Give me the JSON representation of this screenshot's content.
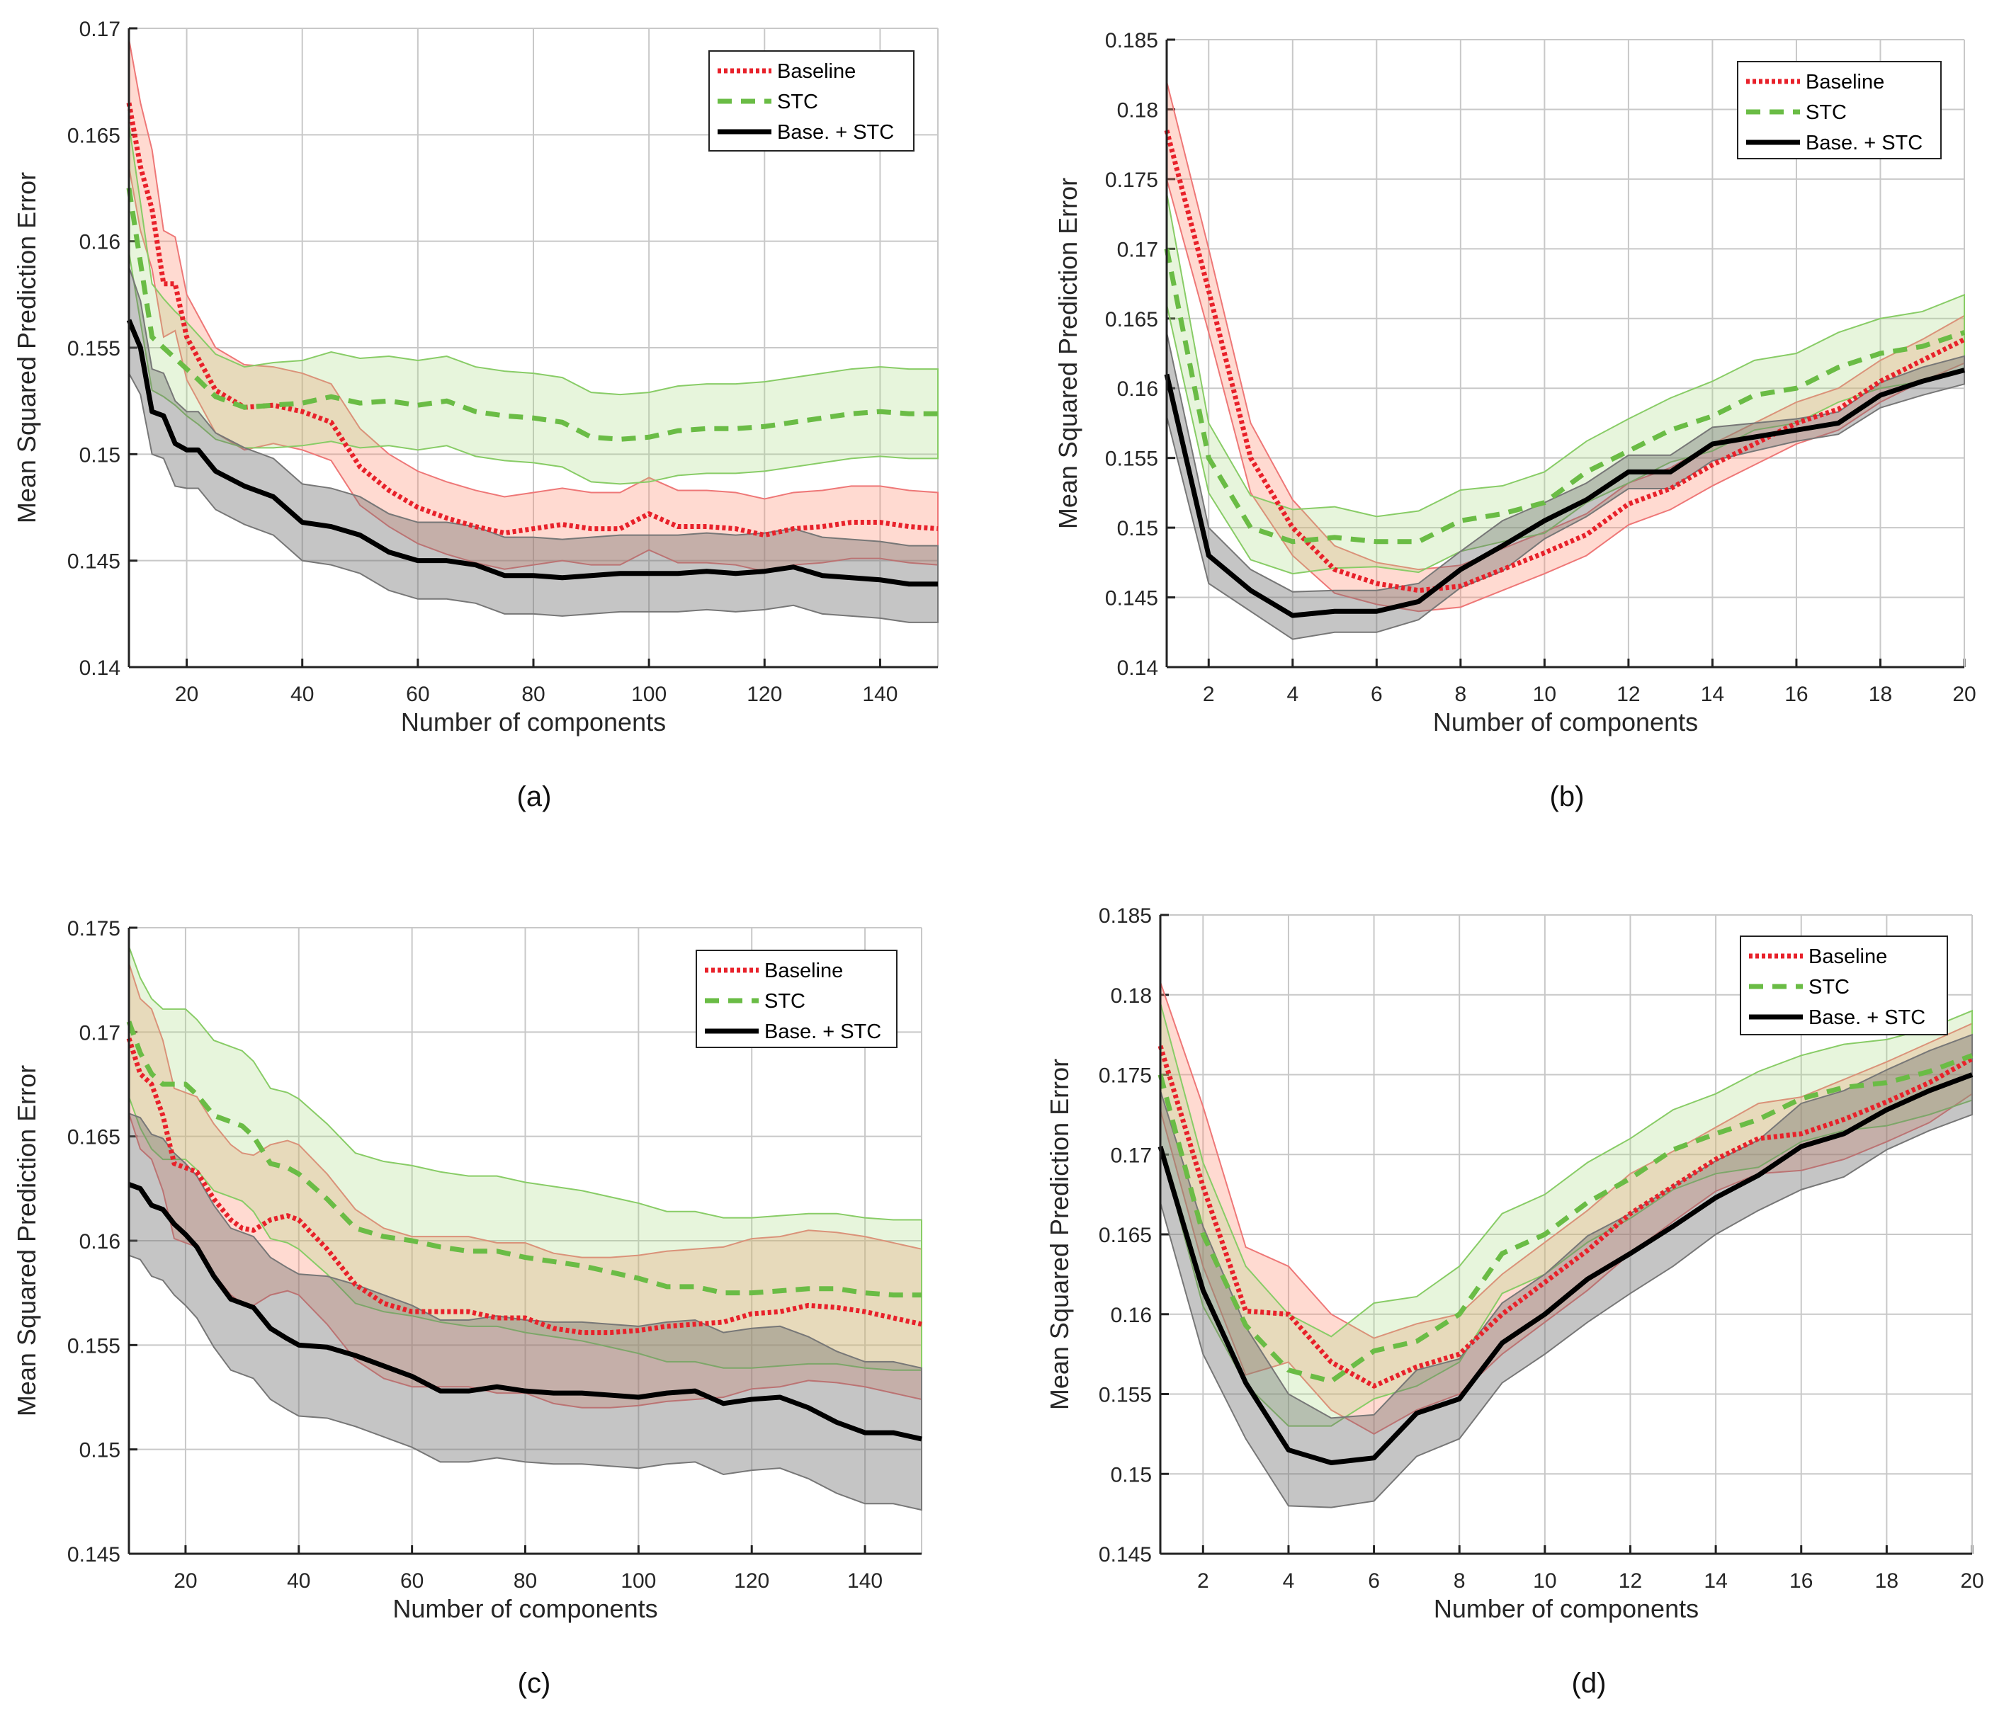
{
  "colors": {
    "baseline": "#e8212a",
    "baseline_band": "#ff8c70",
    "baseline_edge": "#ee7777",
    "stc": "#6abc45",
    "stc_band": "#a8dc80",
    "stc_edge": "#88cc66",
    "combo": "#000000",
    "combo_band": "#6e6e6e",
    "combo_edge": "#777777",
    "grid": "#c8c8c8"
  },
  "chart_data": [
    {
      "type": "line",
      "caption": "(a)",
      "xlabel": "Number of components",
      "ylabel": "Mean Squared Prediction Error",
      "xlim": [
        10,
        150
      ],
      "ylim": [
        0.14,
        0.17
      ],
      "xticks": [
        20,
        40,
        60,
        80,
        100,
        120,
        140
      ],
      "xtick_labels": [
        "20",
        "40",
        "60",
        "80",
        "100",
        "120",
        "140"
      ],
      "yticks": [
        0.14,
        0.145,
        0.15,
        0.155,
        0.16,
        0.165,
        0.17
      ],
      "ytick_labels": [
        "0.14",
        "0.145",
        "0.15",
        "0.155",
        "0.16",
        "0.165",
        "0.17"
      ],
      "grid": true,
      "legend_placement": "top-right",
      "x": [
        10,
        12,
        14,
        16,
        18,
        20,
        22,
        25,
        30,
        35,
        40,
        45,
        50,
        55,
        60,
        65,
        70,
        75,
        80,
        85,
        90,
        95,
        100,
        105,
        110,
        115,
        120,
        125,
        130,
        135,
        140,
        145,
        150
      ],
      "series": [
        {
          "name": "Baseline",
          "style": "dotted",
          "values": [
            0.1665,
            0.1635,
            0.1615,
            0.158,
            0.158,
            0.1555,
            0.1545,
            0.153,
            0.1522,
            0.1523,
            0.152,
            0.1515,
            0.1494,
            0.1483,
            0.1475,
            0.147,
            0.1466,
            0.1463,
            0.1465,
            0.1467,
            0.1465,
            0.1465,
            0.1472,
            0.1466,
            0.1466,
            0.1465,
            0.1462,
            0.1465,
            0.1466,
            0.1468,
            0.1468,
            0.1466,
            0.1465
          ],
          "spread": [
            0.003,
            0.003,
            0.0028,
            0.0025,
            0.0022,
            0.002,
            0.002,
            0.002,
            0.002,
            0.0018,
            0.0018,
            0.0018,
            0.0018,
            0.0017,
            0.0017,
            0.0017,
            0.0017,
            0.0017,
            0.0017,
            0.0017,
            0.0017,
            0.0017,
            0.0017,
            0.0017,
            0.0017,
            0.0017,
            0.0017,
            0.0017,
            0.0017,
            0.0017,
            0.0017,
            0.0017,
            0.0017
          ]
        },
        {
          "name": "STC",
          "style": "dashed",
          "values": [
            0.1625,
            0.159,
            0.1555,
            0.155,
            0.1545,
            0.154,
            0.1535,
            0.1527,
            0.1522,
            0.1523,
            0.1524,
            0.1527,
            0.1524,
            0.1525,
            0.1523,
            0.1525,
            0.152,
            0.1518,
            0.1517,
            0.1515,
            0.1508,
            0.1507,
            0.1508,
            0.1511,
            0.1512,
            0.1512,
            0.1513,
            0.1515,
            0.1517,
            0.1519,
            0.152,
            0.1519,
            0.1519
          ],
          "spread": [
            0.003,
            0.0028,
            0.0025,
            0.0023,
            0.0022,
            0.0022,
            0.0021,
            0.002,
            0.0019,
            0.002,
            0.002,
            0.0021,
            0.0021,
            0.0021,
            0.0021,
            0.0021,
            0.0021,
            0.0021,
            0.0021,
            0.0021,
            0.0021,
            0.0021,
            0.0021,
            0.0021,
            0.0021,
            0.0021,
            0.0021,
            0.0021,
            0.0021,
            0.0021,
            0.0021,
            0.0021,
            0.0021
          ]
        },
        {
          "name": "Base. + STC",
          "style": "solid",
          "values": [
            0.1563,
            0.155,
            0.152,
            0.1518,
            0.1505,
            0.1502,
            0.1502,
            0.1492,
            0.1485,
            0.148,
            0.1468,
            0.1466,
            0.1462,
            0.1454,
            0.145,
            0.145,
            0.1448,
            0.1443,
            0.1443,
            0.1442,
            0.1443,
            0.1444,
            0.1444,
            0.1444,
            0.1445,
            0.1444,
            0.1445,
            0.1447,
            0.1443,
            0.1442,
            0.1441,
            0.1439,
            0.1439
          ],
          "spread": [
            0.0025,
            0.0022,
            0.002,
            0.002,
            0.002,
            0.0018,
            0.0018,
            0.0018,
            0.0018,
            0.0018,
            0.0018,
            0.0018,
            0.0018,
            0.0018,
            0.0018,
            0.0018,
            0.0018,
            0.0018,
            0.0018,
            0.0018,
            0.0018,
            0.0018,
            0.0018,
            0.0018,
            0.0018,
            0.0018,
            0.0018,
            0.0018,
            0.0018,
            0.0018,
            0.0018,
            0.0018,
            0.0018
          ]
        }
      ]
    },
    {
      "type": "line",
      "caption": "(b)",
      "xlabel": "Number of components",
      "ylabel": "Mean Squared Prediction Error",
      "xlim": [
        1,
        20
      ],
      "ylim": [
        0.14,
        0.185
      ],
      "xticks": [
        2,
        4,
        6,
        8,
        10,
        12,
        14,
        16,
        18,
        20
      ],
      "xtick_labels": [
        "2",
        "4",
        "6",
        "8",
        "10",
        "12",
        "14",
        "16",
        "18",
        "20"
      ],
      "yticks": [
        0.14,
        0.145,
        0.15,
        0.155,
        0.16,
        0.165,
        0.17,
        0.175,
        0.18,
        0.185
      ],
      "ytick_labels": [
        "0.14",
        "0.145",
        "0.15",
        "0.155",
        "0.16",
        "0.165",
        "0.17",
        "0.175",
        "0.18",
        "0.185"
      ],
      "grid": true,
      "legend_placement": "top-right",
      "x": [
        1,
        2,
        3,
        4,
        5,
        6,
        7,
        8,
        9,
        10,
        11,
        12,
        13,
        14,
        15,
        16,
        17,
        18,
        19,
        20
      ],
      "series": [
        {
          "name": "Baseline",
          "style": "dotted",
          "values": [
            0.1785,
            0.167,
            0.155,
            0.15,
            0.147,
            0.146,
            0.1455,
            0.1458,
            0.147,
            0.1482,
            0.1495,
            0.1517,
            0.1528,
            0.1545,
            0.156,
            0.1575,
            0.1585,
            0.1605,
            0.162,
            0.1635
          ],
          "spread": [
            0.0035,
            0.003,
            0.0025,
            0.002,
            0.0017,
            0.0015,
            0.0015,
            0.0015,
            0.0015,
            0.0015,
            0.0015,
            0.0015,
            0.0015,
            0.0015,
            0.0015,
            0.0015,
            0.0015,
            0.0015,
            0.0015,
            0.0017
          ]
        },
        {
          "name": "STC",
          "style": "dashed",
          "values": [
            0.17,
            0.155,
            0.15,
            0.149,
            0.1493,
            0.149,
            0.149,
            0.1505,
            0.151,
            0.1518,
            0.154,
            0.1555,
            0.157,
            0.158,
            0.1595,
            0.16,
            0.1615,
            0.1625,
            0.163,
            0.164
          ],
          "spread": [
            0.004,
            0.0025,
            0.0023,
            0.0023,
            0.0022,
            0.0018,
            0.0022,
            0.0022,
            0.002,
            0.0022,
            0.0022,
            0.0023,
            0.0023,
            0.0025,
            0.0025,
            0.0025,
            0.0025,
            0.0025,
            0.0025,
            0.0027
          ]
        },
        {
          "name": "Base. + STC",
          "style": "solid",
          "values": [
            0.161,
            0.148,
            0.1455,
            0.1437,
            0.144,
            0.144,
            0.1447,
            0.147,
            0.1487,
            0.1505,
            0.152,
            0.154,
            0.154,
            0.156,
            0.1565,
            0.157,
            0.1575,
            0.1595,
            0.1605,
            0.1613
          ],
          "spread": [
            0.003,
            0.002,
            0.0015,
            0.0017,
            0.0015,
            0.0015,
            0.0013,
            0.0013,
            0.0018,
            0.0013,
            0.0012,
            0.0012,
            0.0012,
            0.0012,
            0.001,
            0.0008,
            0.0008,
            0.0009,
            0.001,
            0.001
          ]
        }
      ]
    },
    {
      "type": "line",
      "caption": "(c)",
      "xlabel": "Number of components",
      "ylabel": "Mean Squared Prediction Error",
      "xlim": [
        10,
        150
      ],
      "ylim": [
        0.145,
        0.175
      ],
      "xticks": [
        20,
        40,
        60,
        80,
        100,
        120,
        140
      ],
      "xtick_labels": [
        "20",
        "40",
        "60",
        "80",
        "100",
        "120",
        "140"
      ],
      "yticks": [
        0.145,
        0.15,
        0.155,
        0.16,
        0.165,
        0.17,
        0.175
      ],
      "ytick_labels": [
        "0.145",
        "0.15",
        "0.155",
        "0.16",
        "0.165",
        "0.17",
        "0.175"
      ],
      "grid": true,
      "legend_placement": "top-right",
      "x": [
        10,
        12,
        14,
        16,
        18,
        20,
        22,
        25,
        28,
        30,
        32,
        35,
        38,
        40,
        45,
        50,
        55,
        60,
        65,
        70,
        75,
        80,
        85,
        90,
        95,
        100,
        105,
        110,
        115,
        120,
        125,
        130,
        135,
        140,
        145,
        150
      ],
      "series": [
        {
          "name": "Baseline",
          "style": "dotted",
          "values": [
            0.1697,
            0.168,
            0.1675,
            0.166,
            0.1637,
            0.1635,
            0.1633,
            0.162,
            0.161,
            0.1606,
            0.1605,
            0.161,
            0.1612,
            0.161,
            0.1596,
            0.1579,
            0.157,
            0.1566,
            0.1566,
            0.1566,
            0.1563,
            0.1563,
            0.1558,
            0.1556,
            0.1556,
            0.1557,
            0.1559,
            0.156,
            0.1561,
            0.1565,
            0.1566,
            0.1569,
            0.1568,
            0.1566,
            0.1563,
            0.156
          ],
          "spread": 0.0036
        },
        {
          "name": "STC",
          "style": "dashed",
          "values": [
            0.1705,
            0.169,
            0.168,
            0.1675,
            0.1675,
            0.1675,
            0.167,
            0.166,
            0.1657,
            0.1655,
            0.165,
            0.1637,
            0.1635,
            0.1632,
            0.162,
            0.1606,
            0.1602,
            0.16,
            0.1597,
            0.1595,
            0.1595,
            0.1592,
            0.159,
            0.1588,
            0.1585,
            0.1582,
            0.1578,
            0.1578,
            0.1575,
            0.1575,
            0.1576,
            0.1577,
            0.1577,
            0.1575,
            0.1574,
            0.1574
          ],
          "spread": 0.0036
        },
        {
          "name": "Base. + STC",
          "style": "solid",
          "values": [
            0.1627,
            0.1625,
            0.1617,
            0.1615,
            0.1608,
            0.1603,
            0.1597,
            0.1583,
            0.1572,
            0.157,
            0.1568,
            0.1558,
            0.1553,
            0.155,
            0.1549,
            0.1545,
            0.154,
            0.1535,
            0.1528,
            0.1528,
            0.153,
            0.1528,
            0.1527,
            0.1527,
            0.1526,
            0.1525,
            0.1527,
            0.1528,
            0.1522,
            0.1524,
            0.1525,
            0.152,
            0.1513,
            0.1508,
            0.1508,
            0.1505
          ],
          "spread": 0.0034
        }
      ]
    },
    {
      "type": "line",
      "caption": "(d)",
      "xlabel": "Number of components",
      "ylabel": "Mean Squared Prediction Error",
      "xlim": [
        1,
        20
      ],
      "ylim": [
        0.145,
        0.185
      ],
      "xticks": [
        2,
        4,
        6,
        8,
        10,
        12,
        14,
        16,
        18,
        20
      ],
      "xtick_labels": [
        "2",
        "4",
        "6",
        "8",
        "10",
        "12",
        "14",
        "16",
        "18",
        "20"
      ],
      "yticks": [
        0.145,
        0.15,
        0.155,
        0.16,
        0.165,
        0.17,
        0.175,
        0.18,
        0.185
      ],
      "ytick_labels": [
        "0.145",
        "0.15",
        "0.155",
        "0.16",
        "0.165",
        "0.17",
        "0.175",
        "0.18",
        "0.185"
      ],
      "grid": true,
      "legend_placement": "top-right",
      "x": [
        1,
        2,
        3,
        4,
        5,
        6,
        7,
        8,
        9,
        10,
        11,
        12,
        13,
        14,
        15,
        16,
        17,
        18,
        19,
        20
      ],
      "series": [
        {
          "name": "Baseline",
          "style": "dotted",
          "values": [
            0.1768,
            0.168,
            0.1602,
            0.16,
            0.157,
            0.1555,
            0.1567,
            0.1575,
            0.16,
            0.162,
            0.164,
            0.1663,
            0.168,
            0.1697,
            0.171,
            0.1713,
            0.1722,
            0.1733,
            0.1745,
            0.176
          ],
          "spread": [
            0.004,
            0.005,
            0.004,
            0.003,
            0.003,
            0.003,
            0.0027,
            0.0025,
            0.0025,
            0.0025,
            0.0025,
            0.0025,
            0.0022,
            0.002,
            0.0022,
            0.0023,
            0.0025,
            0.0025,
            0.0025,
            0.0022
          ]
        },
        {
          "name": "STC",
          "style": "dashed",
          "values": [
            0.175,
            0.165,
            0.1593,
            0.1565,
            0.1558,
            0.1577,
            0.1583,
            0.16,
            0.1638,
            0.165,
            0.167,
            0.1685,
            0.1703,
            0.1713,
            0.1722,
            0.1735,
            0.1742,
            0.1745,
            0.1752,
            0.1762
          ],
          "spread": [
            0.0045,
            0.0045,
            0.0037,
            0.0035,
            0.0028,
            0.003,
            0.0028,
            0.003,
            0.0025,
            0.0025,
            0.0025,
            0.0025,
            0.0025,
            0.0025,
            0.003,
            0.0027,
            0.0027,
            0.0027,
            0.0027,
            0.0028
          ]
        },
        {
          "name": "Base. + STC",
          "style": "solid",
          "values": [
            0.1705,
            0.1615,
            0.1557,
            0.1515,
            0.1507,
            0.151,
            0.1538,
            0.1547,
            0.1582,
            0.16,
            0.1622,
            0.1638,
            0.1655,
            0.1673,
            0.1687,
            0.1705,
            0.1713,
            0.1728,
            0.174,
            0.175
          ],
          "spread": [
            0.0035,
            0.004,
            0.0035,
            0.0035,
            0.0028,
            0.0027,
            0.0027,
            0.0025,
            0.0025,
            0.0025,
            0.0027,
            0.0025,
            0.0025,
            0.0023,
            0.0022,
            0.0027,
            0.0027,
            0.0025,
            0.0025,
            0.0025
          ]
        }
      ]
    }
  ]
}
